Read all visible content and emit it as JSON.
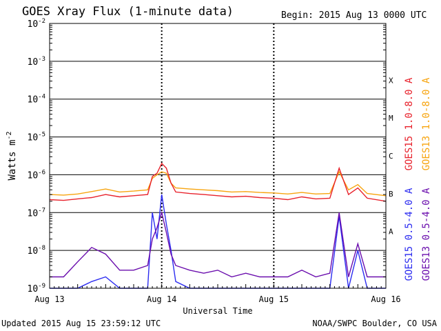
{
  "chart_data": {
    "type": "line",
    "title": "GOES Xray Flux (1-minute data)",
    "begin_label": "Begin:  2015 Aug 13 0000 UTC",
    "xlabel": "Universal Time",
    "ylabel": "Watts m",
    "ylabel_exp": "-2",
    "y_scale": "log",
    "ylim": [
      1e-09,
      0.01
    ],
    "y_ticks": [
      {
        "value": 0.01,
        "base": "10",
        "exp": "-2"
      },
      {
        "value": 0.001,
        "base": "10",
        "exp": "-3"
      },
      {
        "value": 0.0001,
        "base": "10",
        "exp": "-4"
      },
      {
        "value": 1e-05,
        "base": "10",
        "exp": "-5"
      },
      {
        "value": 1e-06,
        "base": "10",
        "exp": "-6"
      },
      {
        "value": 1e-07,
        "base": "10",
        "exp": "-7"
      },
      {
        "value": 1e-08,
        "base": "10",
        "exp": "-8"
      },
      {
        "value": 1e-09,
        "base": "10",
        "exp": "-9"
      }
    ],
    "xlim": [
      "2015-08-13",
      "2015-08-16"
    ],
    "x_ticks": [
      {
        "value": "2015-08-13",
        "label": "Aug 13"
      },
      {
        "value": "2015-08-14",
        "label": "Aug 14"
      },
      {
        "value": "2015-08-15",
        "label": "Aug 15"
      },
      {
        "value": "2015-08-16",
        "label": "Aug 16"
      }
    ],
    "flare_classes": [
      {
        "label": "X",
        "lower": 0.0001
      },
      {
        "label": "M",
        "lower": 1e-05
      },
      {
        "label": "C",
        "lower": 1e-06
      },
      {
        "label": "B",
        "lower": 1e-07
      },
      {
        "label": "A",
        "lower": 1e-08
      }
    ],
    "grid": true,
    "legend_placement": "right",
    "series": [
      {
        "name": "GOES15 1.0-8.0 A",
        "color": "#e8212b",
        "x": [
          "2015-08-13T00:00",
          "2015-08-13T03:00",
          "2015-08-13T06:00",
          "2015-08-13T09:00",
          "2015-08-13T12:00",
          "2015-08-13T15:00",
          "2015-08-13T18:00",
          "2015-08-13T21:00",
          "2015-08-13T22:00",
          "2015-08-13T23:00",
          "2015-08-14T00:00",
          "2015-08-14T01:00",
          "2015-08-14T02:00",
          "2015-08-14T03:00",
          "2015-08-14T06:00",
          "2015-08-14T09:00",
          "2015-08-14T12:00",
          "2015-08-14T15:00",
          "2015-08-14T18:00",
          "2015-08-14T21:00",
          "2015-08-15T00:00",
          "2015-08-15T03:00",
          "2015-08-15T06:00",
          "2015-08-15T09:00",
          "2015-08-15T12:00",
          "2015-08-15T14:00",
          "2015-08-15T16:00",
          "2015-08-15T18:00",
          "2015-08-15T20:00",
          "2015-08-15T23:59"
        ],
        "values": [
          2.2e-07,
          2.1e-07,
          2.3e-07,
          2.5e-07,
          3e-07,
          2.6e-07,
          2.8e-07,
          3e-07,
          9e-07,
          1.1e-06,
          2e-06,
          1.5e-06,
          6e-07,
          3.5e-07,
          3.2e-07,
          3e-07,
          2.8e-07,
          2.6e-07,
          2.7e-07,
          2.5e-07,
          2.4e-07,
          2.2e-07,
          2.6e-07,
          2.3e-07,
          2.4e-07,
          1.5e-06,
          3e-07,
          4.5e-07,
          2.4e-07,
          2e-07
        ]
      },
      {
        "name": "GOES13 1.0-8.0 A",
        "color": "#f7a40e",
        "x": [
          "2015-08-13T00:00",
          "2015-08-13T03:00",
          "2015-08-13T06:00",
          "2015-08-13T09:00",
          "2015-08-13T12:00",
          "2015-08-13T15:00",
          "2015-08-13T18:00",
          "2015-08-13T21:00",
          "2015-08-13T22:00",
          "2015-08-13T23:00",
          "2015-08-14T00:00",
          "2015-08-14T01:00",
          "2015-08-14T02:00",
          "2015-08-14T03:00",
          "2015-08-14T06:00",
          "2015-08-14T09:00",
          "2015-08-14T12:00",
          "2015-08-14T15:00",
          "2015-08-14T18:00",
          "2015-08-14T21:00",
          "2015-08-15T00:00",
          "2015-08-15T03:00",
          "2015-08-15T06:00",
          "2015-08-15T09:00",
          "2015-08-15T12:00",
          "2015-08-15T14:00",
          "2015-08-15T16:00",
          "2015-08-15T18:00",
          "2015-08-15T20:00",
          "2015-08-15T23:59"
        ],
        "values": [
          3e-07,
          2.9e-07,
          3.1e-07,
          3.6e-07,
          4.2e-07,
          3.5e-07,
          3.7e-07,
          4e-07,
          8e-07,
          1e-06,
          1.2e-06,
          1.1e-06,
          6e-07,
          4.5e-07,
          4.2e-07,
          4e-07,
          3.8e-07,
          3.5e-07,
          3.6e-07,
          3.4e-07,
          3.3e-07,
          3.1e-07,
          3.4e-07,
          3.1e-07,
          3.2e-07,
          1.2e-06,
          4e-07,
          5.5e-07,
          3.2e-07,
          2.8e-07
        ]
      },
      {
        "name": "GOES15 0.5-4.0 A",
        "color": "#2b2bf0",
        "x": [
          "2015-08-13T00:00",
          "2015-08-13T03:00",
          "2015-08-13T06:00",
          "2015-08-13T09:00",
          "2015-08-13T12:00",
          "2015-08-13T15:00",
          "2015-08-13T18:00",
          "2015-08-13T21:00",
          "2015-08-13T22:00",
          "2015-08-13T23:00",
          "2015-08-14T00:00",
          "2015-08-14T01:00",
          "2015-08-14T02:00",
          "2015-08-14T03:00",
          "2015-08-14T06:00",
          "2015-08-14T09:00",
          "2015-08-14T12:00",
          "2015-08-14T15:00",
          "2015-08-14T18:00",
          "2015-08-14T21:00",
          "2015-08-15T00:00",
          "2015-08-15T03:00",
          "2015-08-15T06:00",
          "2015-08-15T09:00",
          "2015-08-15T12:00",
          "2015-08-15T14:00",
          "2015-08-15T16:00",
          "2015-08-15T18:00",
          "2015-08-15T20:00",
          "2015-08-15T23:59"
        ],
        "values": [
          1e-09,
          1e-09,
          1e-09,
          1.5e-09,
          2e-09,
          1e-09,
          1e-09,
          1e-09,
          1e-07,
          2e-08,
          3e-07,
          5e-08,
          1e-08,
          1.5e-09,
          1e-09,
          1e-09,
          1e-09,
          1e-09,
          1e-09,
          1e-09,
          1e-09,
          1e-09,
          1e-09,
          1e-09,
          1e-09,
          8e-08,
          1e-09,
          1e-08,
          1e-09,
          1e-09
        ]
      },
      {
        "name": "GOES13 0.5-4.0 A",
        "color": "#6a0dad",
        "x": [
          "2015-08-13T00:00",
          "2015-08-13T03:00",
          "2015-08-13T06:00",
          "2015-08-13T09:00",
          "2015-08-13T12:00",
          "2015-08-13T15:00",
          "2015-08-13T18:00",
          "2015-08-13T21:00",
          "2015-08-13T22:00",
          "2015-08-13T23:00",
          "2015-08-14T00:00",
          "2015-08-14T01:00",
          "2015-08-14T02:00",
          "2015-08-14T03:00",
          "2015-08-14T06:00",
          "2015-08-14T09:00",
          "2015-08-14T12:00",
          "2015-08-14T15:00",
          "2015-08-14T18:00",
          "2015-08-14T21:00",
          "2015-08-15T00:00",
          "2015-08-15T03:00",
          "2015-08-15T06:00",
          "2015-08-15T09:00",
          "2015-08-15T12:00",
          "2015-08-15T14:00",
          "2015-08-15T16:00",
          "2015-08-15T18:00",
          "2015-08-15T20:00",
          "2015-08-15T23:59"
        ],
        "values": [
          2e-09,
          2e-09,
          5e-09,
          1.2e-08,
          8e-09,
          3e-09,
          3e-09,
          4e-09,
          2e-08,
          4e-08,
          1e-07,
          3e-08,
          8e-09,
          4e-09,
          3e-09,
          2.5e-09,
          3e-09,
          2e-09,
          2.5e-09,
          2e-09,
          2e-09,
          2e-09,
          3e-09,
          2e-09,
          2.5e-09,
          1e-07,
          2e-09,
          1.5e-08,
          2e-09,
          2e-09
        ]
      }
    ]
  },
  "footer": {
    "updated": "Updated 2015 Aug 15 23:59:12 UTC",
    "source": "NOAA/SWPC Boulder, CO USA"
  }
}
